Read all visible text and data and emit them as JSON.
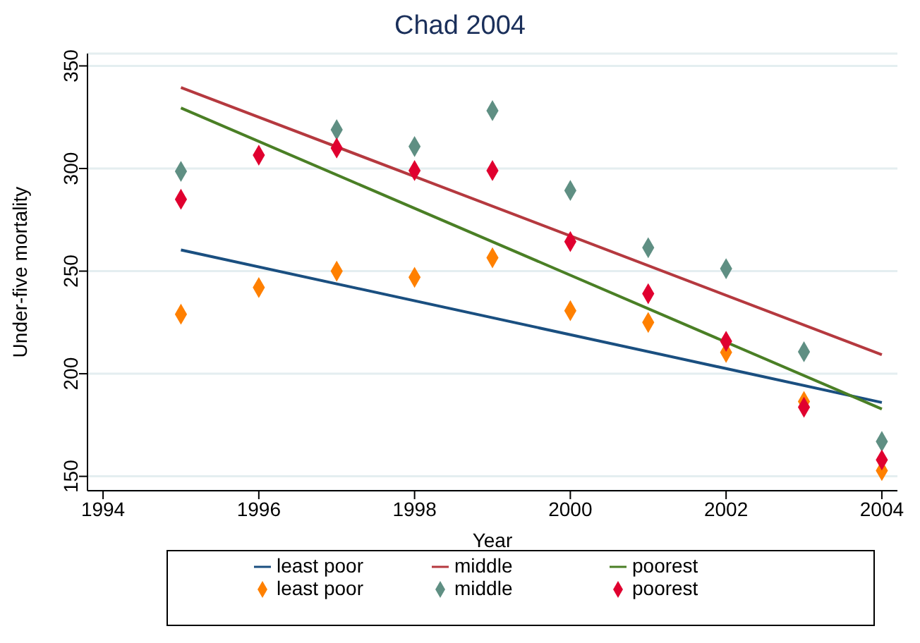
{
  "chart_data": {
    "type": "scatter",
    "title": "Chad 2004",
    "xlabel": "Year",
    "ylabel": "Under-five mortality",
    "xlim": [
      1993.8,
      2004.2
    ],
    "xticks": [
      1994,
      1996,
      1998,
      2000,
      2002,
      2004
    ],
    "ylim": [
      143,
      356
    ],
    "yticks": [
      150,
      200,
      250,
      300,
      350
    ],
    "grid": "y",
    "legend": "bottom",
    "series": [
      {
        "name": "least poor",
        "type": "line",
        "marker": "none",
        "color": "#1a4f80",
        "x": [
          1995,
          2004
        ],
        "values": [
          260.3,
          186
        ]
      },
      {
        "name": "middle",
        "type": "line",
        "marker": "none",
        "color": "#b5393f",
        "x": [
          1995,
          2004
        ],
        "values": [
          339.5,
          209.3
        ]
      },
      {
        "name": "poorest",
        "type": "line",
        "marker": "none",
        "color": "#4a7f25",
        "x": [
          1995,
          2004
        ],
        "values": [
          329.5,
          182.8
        ]
      },
      {
        "name": "least poor",
        "type": "scatter",
        "marker": "diamond",
        "color": "#ff8000",
        "x": [
          1995,
          1996,
          1997,
          1998,
          1999,
          2000,
          2001,
          2002,
          2003,
          2004
        ],
        "values": [
          229,
          242,
          250,
          247,
          256.5,
          230.7,
          225,
          210.4,
          186.5,
          152.8
        ]
      },
      {
        "name": "middle",
        "type": "scatter",
        "marker": "diamond",
        "color": "#5f8f83",
        "x": [
          1995,
          1997,
          1998,
          1999,
          2000,
          2001,
          2002,
          2003,
          2004
        ],
        "values": [
          298.6,
          318.9,
          310.7,
          328.2,
          289.3,
          261.4,
          251.2,
          210.7,
          167
        ]
      },
      {
        "name": "poorest",
        "type": "scatter",
        "marker": "diamond",
        "color": "#e0002f",
        "x": [
          1995,
          1996,
          1997,
          1998,
          1999,
          2000,
          2001,
          2002,
          2003,
          2004
        ],
        "values": [
          285,
          306.5,
          310,
          299,
          299,
          264.4,
          239,
          215.8,
          183.7,
          158
        ]
      }
    ]
  }
}
